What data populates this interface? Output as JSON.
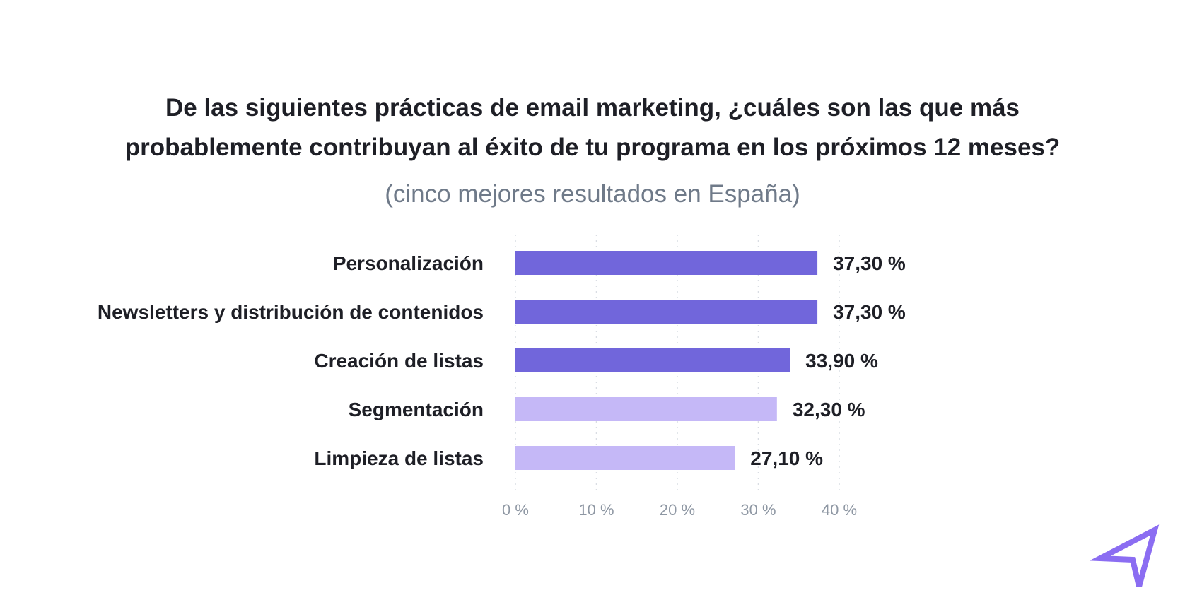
{
  "chart_data": {
    "type": "bar",
    "orientation": "horizontal",
    "title": "De las siguientes prácticas de email marketing, ¿cuáles son las que más probablemente contribuyan al éxito de tu programa en los próximos 12 meses?",
    "title_lines": [
      "De las siguientes prácticas de email marketing, ¿cuáles son las que más",
      "probablemente contribuyan al éxito de tu programa en los próximos 12 meses?"
    ],
    "subtitle": "(cinco mejores resultados en España)",
    "categories": [
      "Personalización",
      "Newsletters y distribución de contenidos",
      "Creación de listas",
      "Segmentación",
      "Limpieza de listas"
    ],
    "values": [
      37.3,
      37.3,
      33.9,
      32.3,
      27.1
    ],
    "value_labels": [
      "37,30 %",
      "37,30 %",
      "33,90 %",
      "32,30 %",
      "27,10 %"
    ],
    "bar_colors": [
      "#7166db",
      "#7166db",
      "#7166db",
      "#c5b8f7",
      "#c5b8f7"
    ],
    "xlim": [
      0,
      40
    ],
    "ticks": [
      0,
      10,
      20,
      30,
      40
    ],
    "tick_labels": [
      "0 %",
      "10 %",
      "20 %",
      "30 %",
      "40 %"
    ],
    "grid": true,
    "xlabel": "",
    "ylabel": ""
  },
  "logo": {
    "name": "paper-plane-icon",
    "color": "#8b6df2"
  }
}
